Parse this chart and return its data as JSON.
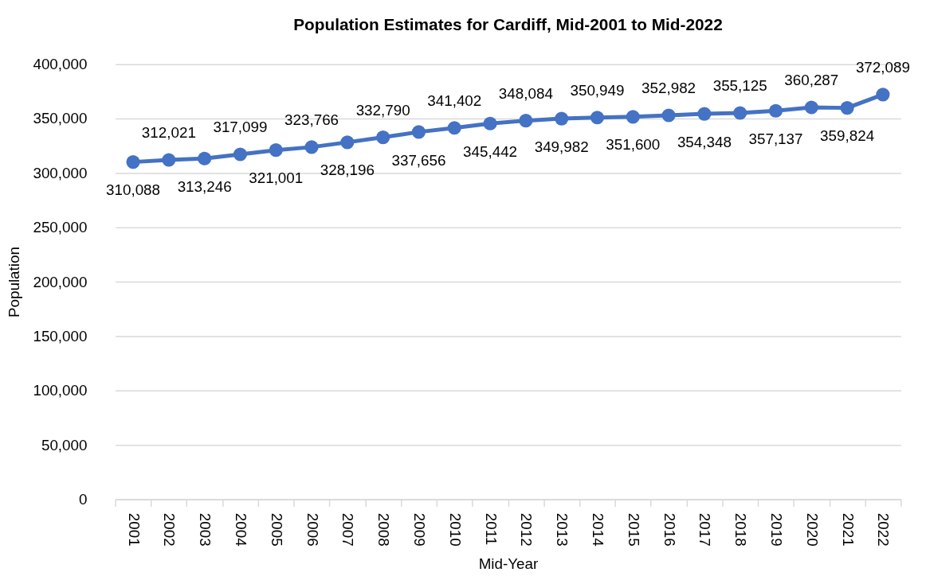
{
  "chart_data": {
    "type": "line",
    "title": "Population Estimates for Cardiff, Mid-2001 to Mid-2022",
    "xlabel": "Mid-Year",
    "ylabel": "Population",
    "categories": [
      "2001",
      "2002",
      "2003",
      "2004",
      "2005",
      "2006",
      "2007",
      "2008",
      "2009",
      "2010",
      "2011",
      "2012",
      "2013",
      "2014",
      "2015",
      "2016",
      "2017",
      "2018",
      "2019",
      "2020",
      "2021",
      "2022"
    ],
    "series": [
      {
        "color": "#4472c4",
        "values": [
          310088,
          312021,
          313246,
          317099,
          321001,
          323766,
          328196,
          332790,
          337656,
          341402,
          345442,
          348084,
          349982,
          350949,
          351600,
          352982,
          354348,
          355125,
          357137,
          360287,
          359824,
          372089
        ],
        "value_labels": [
          "310,088",
          "312,021",
          "313,246",
          "317,099",
          "321,001",
          "323,766",
          "328,196",
          "332,790",
          "337,656",
          "341,402",
          "345,442",
          "348,084",
          "349,982",
          "350,949",
          "351,600",
          "352,982",
          "354,348",
          "355,125",
          "357,137",
          "360,287",
          "359,824",
          "372,089"
        ]
      }
    ],
    "ylim": [
      0,
      400000
    ],
    "yticks": [
      0,
      {
        "value": 50000,
        "label": "50,000"
      },
      {
        "value": 100000,
        "label": "100,000"
      },
      {
        "value": 150000,
        "label": "150,000"
      },
      {
        "value": 200000,
        "label": "200,000"
      },
      {
        "value": 250000,
        "label": "250,000"
      },
      {
        "value": 300000,
        "label": "300,000"
      },
      {
        "value": 350000,
        "label": "350,000"
      },
      {
        "value": 400000,
        "label": "400,000"
      }
    ],
    "grid": "y",
    "marker": "circle",
    "line_style": "solid"
  }
}
